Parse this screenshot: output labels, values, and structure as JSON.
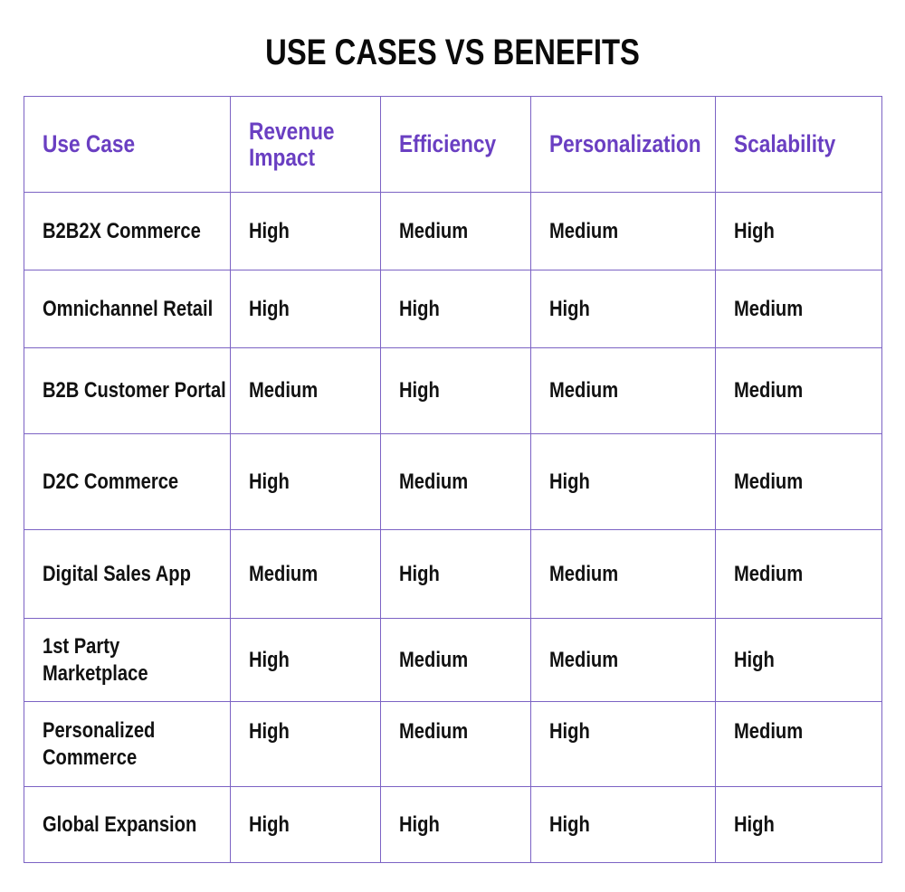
{
  "title": "USE CASES VS BENEFITS",
  "colors": {
    "header_text": "#6a3fc2",
    "grid_border": "#7c63c4",
    "body_text": "#111111"
  },
  "table": {
    "headers": [
      "Use Case",
      "Revenue Impact",
      "Efficiency",
      "Personalization",
      "Scalability"
    ],
    "rows": [
      [
        "B2B2X Commerce",
        "High",
        "Medium",
        "Medium",
        "High"
      ],
      [
        "Omnichannel Retail",
        "High",
        "High",
        "High",
        "Medium"
      ],
      [
        "B2B Customer Portal",
        "Medium",
        "High",
        "Medium",
        "Medium"
      ],
      [
        "D2C Commerce",
        "High",
        "Medium",
        "High",
        "Medium"
      ],
      [
        "Digital Sales App",
        "Medium",
        "High",
        "Medium",
        "Medium"
      ],
      [
        "1st Party Marketplace",
        "High",
        "Medium",
        "Medium",
        "High"
      ],
      [
        "Personalized Commerce",
        "High",
        "Medium",
        "High",
        "Medium"
      ],
      [
        "Global Expansion",
        "High",
        "High",
        "High",
        "High"
      ]
    ]
  }
}
